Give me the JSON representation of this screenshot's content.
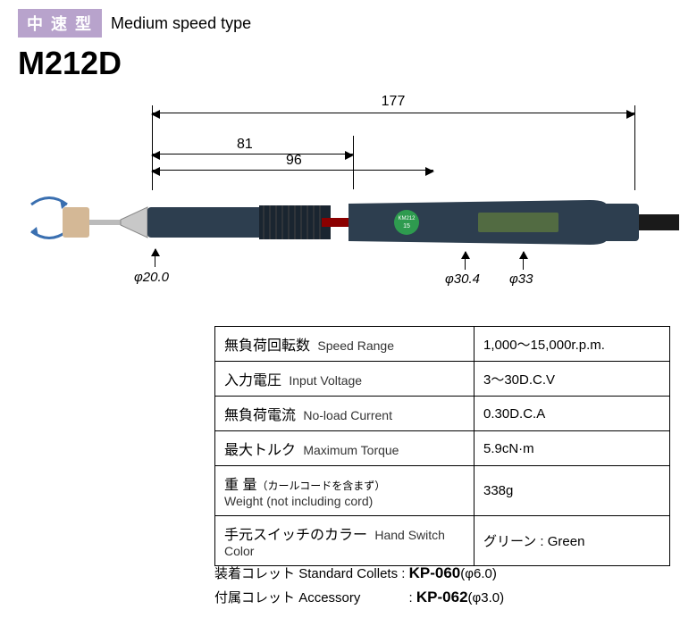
{
  "header": {
    "badge_text": "中 速 型",
    "type_label": "Medium speed type",
    "model": "M212D"
  },
  "dimensions": {
    "total_length": "177",
    "front_length": "81",
    "rear_length": "96",
    "dia1": "φ20.0",
    "dia2": "φ30.4",
    "dia3": "φ33"
  },
  "tool": {
    "body_color": "#2d3e4f",
    "grip_color": "#1a2530",
    "ring_color": "#8b0000",
    "switch_color": "#2e9b4f",
    "switch_label_top": "KM212",
    "switch_label_bot": "15",
    "tip_color": "#d4b896",
    "brand_stripe": "#6a8a3a"
  },
  "specs": [
    {
      "jp": "無負荷回転数",
      "en": "Speed Range",
      "val": "1,000～15,000r.p.m."
    },
    {
      "jp": "入力電圧",
      "en": "Input Voltage",
      "val": "3～30D.C.V"
    },
    {
      "jp": "無負荷電流",
      "en": "No-load Current",
      "val": "0.30D.C.A"
    },
    {
      "jp": "最大トルク",
      "en": "Maximum Torque",
      "val": "5.9cN·m"
    },
    {
      "jp": "重 量",
      "en": "Weight (not including cord)",
      "jp2": "（カールコードを含まず）",
      "val": "338g"
    },
    {
      "jp": "手元スイッチのカラー",
      "en": "Hand Switch Color",
      "val": "グリーン : Green"
    }
  ],
  "footer": {
    "line1_jp": "装着コレット",
    "line1_en": "Standard Collets",
    "line1_kp": "KP-060",
    "line1_dia": "(φ6.0)",
    "line2_jp": "付属コレット",
    "line2_en": "Accessory",
    "line2_kp": "KP-062",
    "line2_dia": "(φ3.0)"
  },
  "colors": {
    "badge_bg": "#b8a3cc",
    "arrow_blue": "#3a6fb0"
  }
}
